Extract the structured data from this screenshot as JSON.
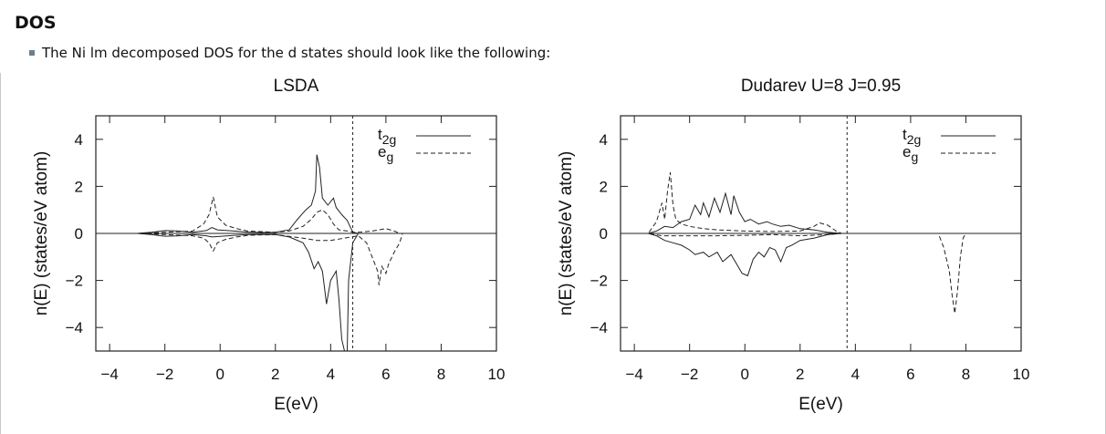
{
  "page": {
    "heading": "DOS",
    "bullet_text": "The Ni lm decomposed DOS for the d states should look like the following:"
  },
  "chart_data": [
    {
      "type": "line",
      "title": "LSDA",
      "xlabel": "E(eV)",
      "ylabel": "n(E) (states/eV atom)",
      "xlim": [
        -4.5,
        10
      ],
      "ylim": [
        -5,
        5
      ],
      "xticks": [
        "-4",
        "-2",
        "0",
        "2",
        "4",
        "6",
        "8",
        "10"
      ],
      "yticks": [
        "-4",
        "-2",
        "0",
        "2",
        "4"
      ],
      "fermi_level": 4.8,
      "legend": {
        "placement": "top-right",
        "entries": [
          {
            "label": "t",
            "sub": "2g",
            "style": "solid"
          },
          {
            "label": "e",
            "sub": "g",
            "style": "dashed"
          }
        ]
      },
      "series": [
        {
          "name": "t2g",
          "style": "solid",
          "points": [
            [
              -4.5,
              0
            ],
            [
              -3,
              0
            ],
            [
              -2.5,
              0.05
            ],
            [
              -2,
              0.12
            ],
            [
              -1.5,
              0.1
            ],
            [
              -1,
              0.05
            ],
            [
              -0.5,
              0.12
            ],
            [
              -0.3,
              0.25
            ],
            [
              -0.1,
              0.15
            ],
            [
              0.5,
              0.1
            ],
            [
              1,
              0.06
            ],
            [
              1.5,
              0.04
            ],
            [
              2,
              0.05
            ],
            [
              2.5,
              0.15
            ],
            [
              2.8,
              0.6
            ],
            [
              3.1,
              1.0
            ],
            [
              3.3,
              1.2
            ],
            [
              3.45,
              1.8
            ],
            [
              3.5,
              3.35
            ],
            [
              3.6,
              2.8
            ],
            [
              3.7,
              1.5
            ],
            [
              3.9,
              1.2
            ],
            [
              4.1,
              1.5
            ],
            [
              4.2,
              1.1
            ],
            [
              4.4,
              0.8
            ],
            [
              4.6,
              0.55
            ],
            [
              4.8,
              0.05
            ],
            [
              5,
              0
            ],
            [
              10,
              0
            ]
          ]
        },
        {
          "name": "t2g-minority",
          "style": "solid",
          "points": [
            [
              -4.5,
              0
            ],
            [
              -3,
              0
            ],
            [
              -2.5,
              -0.05
            ],
            [
              -2,
              -0.12
            ],
            [
              -1.5,
              -0.1
            ],
            [
              -1,
              -0.05
            ],
            [
              -0.5,
              -0.1
            ],
            [
              -0.3,
              -0.15
            ],
            [
              0.5,
              -0.08
            ],
            [
              1,
              -0.05
            ],
            [
              2,
              -0.05
            ],
            [
              2.5,
              -0.15
            ],
            [
              3,
              -0.4
            ],
            [
              3.2,
              -0.8
            ],
            [
              3.4,
              -1.5
            ],
            [
              3.55,
              -1.2
            ],
            [
              3.7,
              -1.6
            ],
            [
              3.85,
              -3.0
            ],
            [
              4.0,
              -2.0
            ],
            [
              4.2,
              -1.6
            ],
            [
              4.3,
              -2.8
            ],
            [
              4.4,
              -4.5
            ],
            [
              4.5,
              -5.0
            ],
            [
              4.55,
              -5.0
            ],
            [
              4.6,
              -5.0
            ],
            [
              4.65,
              -2.0
            ],
            [
              4.8,
              -0.4
            ],
            [
              5.0,
              0
            ],
            [
              10,
              0
            ]
          ]
        },
        {
          "name": "eg",
          "style": "dashed",
          "points": [
            [
              -4.5,
              0
            ],
            [
              -3,
              0
            ],
            [
              -2,
              0.05
            ],
            [
              -1,
              0.1
            ],
            [
              -0.6,
              0.4
            ],
            [
              -0.4,
              0.8
            ],
            [
              -0.25,
              1.55
            ],
            [
              -0.1,
              0.7
            ],
            [
              0.2,
              0.35
            ],
            [
              0.6,
              0.2
            ],
            [
              1,
              0.1
            ],
            [
              2,
              0.05
            ],
            [
              2.5,
              0.1
            ],
            [
              3,
              0.3
            ],
            [
              3.3,
              0.6
            ],
            [
              3.5,
              0.9
            ],
            [
              3.7,
              1.0
            ],
            [
              3.9,
              0.8
            ],
            [
              4.1,
              0.4
            ],
            [
              4.3,
              0.15
            ],
            [
              4.6,
              0.1
            ],
            [
              4.8,
              0.05
            ],
            [
              5.0,
              0.05
            ],
            [
              5.5,
              0.1
            ],
            [
              6.0,
              0.2
            ],
            [
              6.3,
              0.1
            ],
            [
              6.5,
              0
            ]
          ]
        },
        {
          "name": "eg-minority",
          "style": "dashed",
          "points": [
            [
              -4.5,
              0
            ],
            [
              -3,
              0
            ],
            [
              -2,
              -0.05
            ],
            [
              -1,
              -0.1
            ],
            [
              -0.6,
              -0.2
            ],
            [
              -0.4,
              -0.4
            ],
            [
              -0.25,
              -0.75
            ],
            [
              -0.1,
              -0.4
            ],
            [
              0.2,
              -0.25
            ],
            [
              0.6,
              -0.15
            ],
            [
              1,
              -0.08
            ],
            [
              2,
              -0.05
            ],
            [
              3,
              -0.2
            ],
            [
              3.5,
              -0.3
            ],
            [
              4,
              -0.3
            ],
            [
              4.5,
              -0.2
            ],
            [
              5,
              -0.1
            ],
            [
              5.3,
              -0.4
            ],
            [
              5.5,
              -1.0
            ],
            [
              5.7,
              -1.6
            ],
            [
              5.75,
              -2.2
            ],
            [
              5.85,
              -1.4
            ],
            [
              6.0,
              -1.7
            ],
            [
              6.1,
              -1.3
            ],
            [
              6.3,
              -0.8
            ],
            [
              6.5,
              -0.4
            ],
            [
              6.6,
              0
            ]
          ]
        }
      ]
    },
    {
      "type": "line",
      "title": "Dudarev  U=8 J=0.95",
      "xlabel": "E(eV)",
      "ylabel": "n(E) (states/eV atom)",
      "xlim": [
        -4.5,
        10
      ],
      "ylim": [
        -5,
        5
      ],
      "xticks": [
        "-4",
        "-2",
        "0",
        "2",
        "4",
        "6",
        "8",
        "10"
      ],
      "yticks": [
        "-4",
        "-2",
        "0",
        "2",
        "4"
      ],
      "fermi_level": 3.7,
      "legend": {
        "placement": "top-right",
        "entries": [
          {
            "label": "t",
            "sub": "2g",
            "style": "solid"
          },
          {
            "label": "e",
            "sub": "g",
            "style": "dashed"
          }
        ]
      },
      "series": [
        {
          "name": "t2g",
          "style": "solid",
          "points": [
            [
              -4.5,
              0
            ],
            [
              -3.5,
              0
            ],
            [
              -3.2,
              0.1
            ],
            [
              -2.9,
              0.3
            ],
            [
              -2.6,
              0.25
            ],
            [
              -2.3,
              0.5
            ],
            [
              -2.0,
              0.6
            ],
            [
              -1.8,
              1.2
            ],
            [
              -1.6,
              0.8
            ],
            [
              -1.5,
              1.3
            ],
            [
              -1.3,
              0.7
            ],
            [
              -1.1,
              1.5
            ],
            [
              -0.9,
              0.9
            ],
            [
              -0.7,
              1.7
            ],
            [
              -0.5,
              0.8
            ],
            [
              -0.4,
              1.6
            ],
            [
              -0.2,
              0.9
            ],
            [
              0,
              0.5
            ],
            [
              0.2,
              0.6
            ],
            [
              0.5,
              0.4
            ],
            [
              0.8,
              0.5
            ],
            [
              1.0,
              0.4
            ],
            [
              1.3,
              0.3
            ],
            [
              1.6,
              0.35
            ],
            [
              2.0,
              0.2
            ],
            [
              2.5,
              0.15
            ],
            [
              3.0,
              0.05
            ],
            [
              3.5,
              0
            ],
            [
              10,
              0
            ]
          ]
        },
        {
          "name": "t2g-minority",
          "style": "solid",
          "points": [
            [
              -4.5,
              0
            ],
            [
              -3.5,
              0
            ],
            [
              -3.2,
              -0.1
            ],
            [
              -2.9,
              -0.3
            ],
            [
              -2.6,
              -0.4
            ],
            [
              -2.3,
              -0.5
            ],
            [
              -2.0,
              -0.7
            ],
            [
              -1.8,
              -0.9
            ],
            [
              -1.5,
              -0.8
            ],
            [
              -1.3,
              -1.0
            ],
            [
              -1.0,
              -0.8
            ],
            [
              -0.8,
              -1.2
            ],
            [
              -0.5,
              -0.9
            ],
            [
              -0.3,
              -1.3
            ],
            [
              -0.1,
              -1.7
            ],
            [
              0.1,
              -1.8
            ],
            [
              0.3,
              -1.1
            ],
            [
              0.5,
              -0.8
            ],
            [
              0.7,
              -1.0
            ],
            [
              0.9,
              -0.6
            ],
            [
              1.1,
              -0.7
            ],
            [
              1.3,
              -1.2
            ],
            [
              1.5,
              -0.6
            ],
            [
              1.7,
              -0.5
            ],
            [
              2.0,
              -0.3
            ],
            [
              2.5,
              -0.2
            ],
            [
              3.0,
              -0.05
            ],
            [
              3.5,
              0
            ],
            [
              10,
              0
            ]
          ]
        },
        {
          "name": "eg",
          "style": "dashed",
          "points": [
            [
              -4.5,
              0
            ],
            [
              -3.5,
              0
            ],
            [
              -3.2,
              0.5
            ],
            [
              -3.0,
              1.3
            ],
            [
              -2.9,
              0.6
            ],
            [
              -2.8,
              1.8
            ],
            [
              -2.7,
              2.6
            ],
            [
              -2.6,
              1.2
            ],
            [
              -2.5,
              0.6
            ],
            [
              -2.3,
              0.4
            ],
            [
              -2.0,
              0.3
            ],
            [
              -1.5,
              0.2
            ],
            [
              -1.0,
              0.15
            ],
            [
              0,
              0.1
            ],
            [
              1.0,
              0.08
            ],
            [
              2.0,
              0.1
            ],
            [
              2.5,
              0.3
            ],
            [
              2.7,
              0.45
            ],
            [
              3.0,
              0.35
            ],
            [
              3.3,
              0.1
            ],
            [
              3.5,
              0
            ],
            [
              10,
              0
            ]
          ]
        },
        {
          "name": "eg-minority",
          "style": "dashed",
          "points": [
            [
              -4.5,
              0
            ],
            [
              -3.5,
              0
            ],
            [
              -3.0,
              -0.1
            ],
            [
              -2.0,
              -0.1
            ],
            [
              -1.0,
              -0.1
            ],
            [
              0,
              -0.08
            ],
            [
              1.0,
              -0.05
            ],
            [
              2.0,
              -0.1
            ],
            [
              3.0,
              -0.05
            ],
            [
              3.5,
              0
            ],
            [
              7.0,
              0
            ],
            [
              7.2,
              -0.6
            ],
            [
              7.4,
              -1.6
            ],
            [
              7.5,
              -2.6
            ],
            [
              7.6,
              -3.4
            ],
            [
              7.7,
              -2.4
            ],
            [
              7.8,
              -1.0
            ],
            [
              7.9,
              -0.2
            ],
            [
              8.0,
              0
            ],
            [
              10,
              0
            ]
          ]
        }
      ]
    }
  ]
}
